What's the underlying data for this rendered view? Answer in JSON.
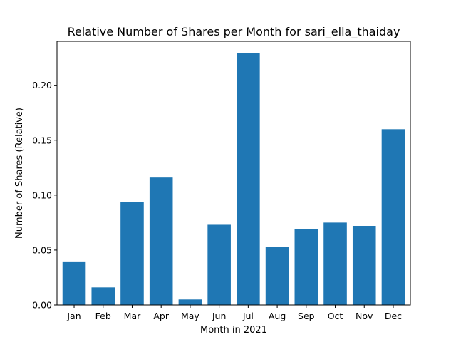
{
  "chart_data": {
    "type": "bar",
    "title": "Relative Number of Shares per Month for sari_ella_thaiday",
    "xlabel": "Month in 2021",
    "ylabel": "Number of Shares (Relative)",
    "categories": [
      "Jan",
      "Feb",
      "Mar",
      "Apr",
      "May",
      "Jun",
      "Jul",
      "Aug",
      "Sep",
      "Oct",
      "Nov",
      "Dec"
    ],
    "values": [
      0.039,
      0.016,
      0.094,
      0.116,
      0.005,
      0.073,
      0.229,
      0.053,
      0.069,
      0.075,
      0.072,
      0.16
    ],
    "ylim": [
      0,
      0.24
    ],
    "yticks": [
      0.0,
      0.05,
      0.1,
      0.15,
      0.2
    ],
    "ytick_labels": [
      "0.00",
      "0.05",
      "0.10",
      "0.15",
      "0.20"
    ],
    "bar_color": "#1f77b4",
    "grid": false,
    "legend": "none"
  }
}
